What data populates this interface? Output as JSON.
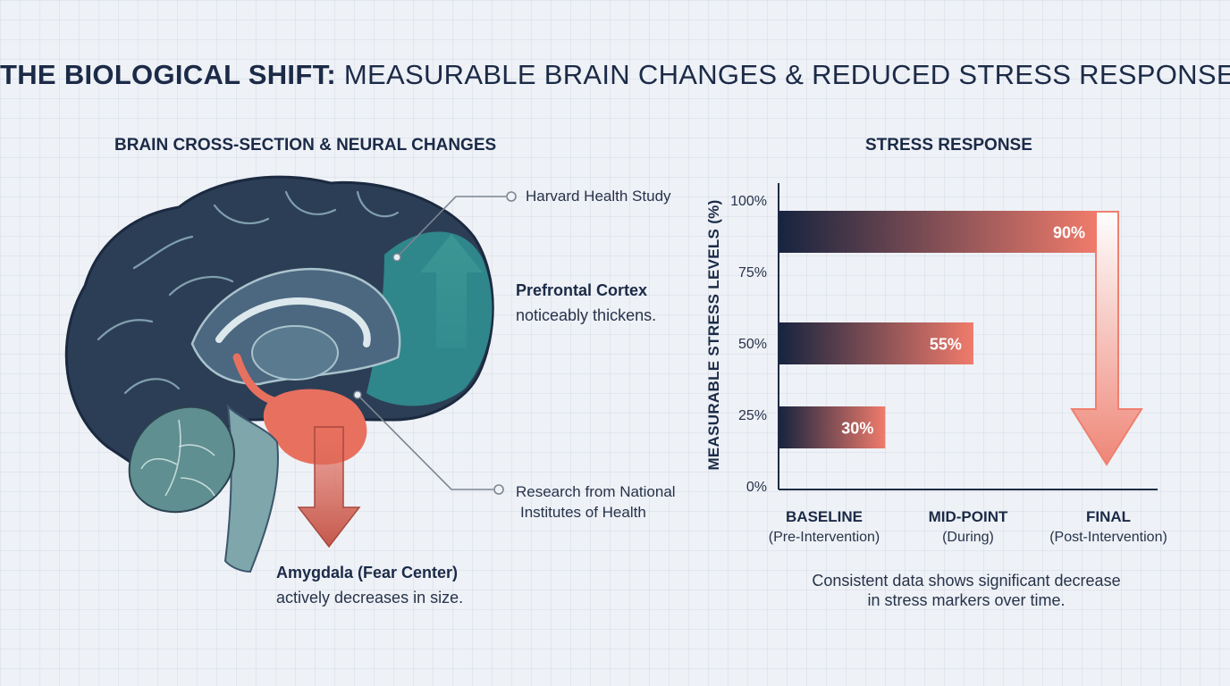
{
  "title": {
    "strong": "THE BIOLOGICAL SHIFT:",
    "rest": "MEASURABLE BRAIN CHANGES & REDUCED STRESS RESPONSE"
  },
  "brain_panel": {
    "title": "BRAIN CROSS-SECTION & NEURAL CHANGES",
    "source_1": "Harvard Health Study",
    "source_2_line1": "Research from National",
    "source_2_line2": "Institutes of Health",
    "prefrontal": {
      "title": "Prefrontal Cortex",
      "subtitle": "noticeably thickens."
    },
    "amygdala": {
      "title": "Amygdala (Fear Center)",
      "subtitle": "actively decreases in size."
    },
    "colors": {
      "cortex": "#2c3e55",
      "prefrontal": "#2f8a8e",
      "amygdala": "#e8705f",
      "cerebellum": "#5f8f90"
    }
  },
  "chart_panel": {
    "title": "STRESS RESPONSE",
    "caption_line1": "Consistent data shows significant decrease",
    "caption_line2": "in stress markers over time."
  },
  "chart_data": {
    "type": "bar",
    "orientation": "horizontal",
    "title": "STRESS RESPONSE",
    "ylabel": "MEASURABLE STRESS LEVELS (%)",
    "ylim": [
      0,
      100
    ],
    "yticks": [
      "0%",
      "25%",
      "50%",
      "75%",
      "100%"
    ],
    "categories": [
      {
        "name": "BASELINE",
        "sub": "(Pre-Intervention)"
      },
      {
        "name": "MID-POINT",
        "sub": "(During)"
      },
      {
        "name": "FINAL",
        "sub": "(Post-Intervention)"
      }
    ],
    "values": [
      90,
      55,
      30
    ],
    "value_labels": [
      "90%",
      "55%",
      "30%"
    ],
    "grid": false,
    "colors": {
      "bar_start": "#17243f",
      "bar_end": "#f07b6b",
      "arrow": "#ef8070"
    }
  }
}
